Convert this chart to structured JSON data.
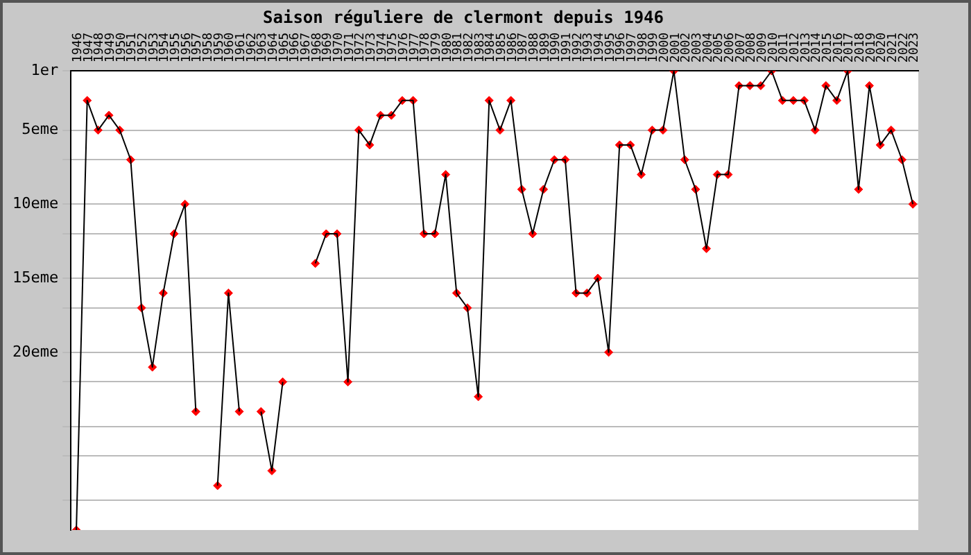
{
  "chart_data": {
    "type": "line",
    "title": "Saison réguliere de clermont depuis 1946",
    "categories": [
      "1946",
      "1947",
      "1948",
      "1949",
      "1950",
      "1951",
      "1952",
      "1953",
      "1954",
      "1955",
      "1956",
      "1957",
      "1958",
      "1959",
      "1960",
      "1961",
      "1962",
      "1963",
      "1964",
      "1965",
      "1966",
      "1967",
      "1968",
      "1969",
      "1970",
      "1971",
      "1972",
      "1973",
      "1974",
      "1975",
      "1976",
      "1977",
      "1978",
      "1979",
      "1980",
      "1981",
      "1982",
      "1983",
      "1984",
      "1985",
      "1986",
      "1987",
      "1988",
      "1989",
      "1990",
      "1991",
      "1992",
      "1993",
      "1994",
      "1995",
      "1996",
      "1997",
      "1998",
      "1999",
      "2000",
      "2001",
      "2002",
      "2003",
      "2004",
      "2005",
      "2006",
      "2007",
      "2008",
      "2009",
      "2010",
      "2011",
      "2012",
      "2013",
      "2014",
      "2015",
      "2016",
      "2017",
      "2018",
      "2019",
      "2020",
      "2021",
      "2022",
      "2023"
    ],
    "series": [
      {
        "color": "#000000",
        "marker": "none",
        "values": [
          32,
          3,
          5,
          4,
          5,
          7,
          17,
          21,
          16,
          12,
          10,
          24,
          null,
          29,
          16,
          24,
          null,
          24,
          28,
          22,
          null,
          null,
          14,
          12,
          12,
          22,
          5,
          6,
          4,
          4,
          3,
          3,
          12,
          12,
          8,
          16,
          17,
          23,
          3,
          5,
          3,
          9,
          12,
          9,
          7,
          7,
          16,
          16,
          15,
          20,
          6,
          6,
          8,
          5,
          5,
          1,
          7,
          9,
          13,
          8,
          8,
          2,
          2,
          2,
          1,
          3,
          3,
          3,
          5,
          2,
          3,
          1,
          9,
          2,
          6,
          5,
          7,
          10
        ]
      },
      {
        "type": "scatter",
        "color": "#ff0000",
        "values": [
          32,
          3,
          5,
          4,
          5,
          7,
          17,
          21,
          16,
          12,
          10,
          24,
          null,
          29,
          16,
          24,
          null,
          24,
          28,
          22,
          null,
          null,
          14,
          12,
          12,
          22,
          5,
          6,
          4,
          4,
          3,
          3,
          12,
          12,
          8,
          16,
          17,
          23,
          3,
          5,
          3,
          9,
          12,
          9,
          7,
          7,
          16,
          16,
          15,
          20,
          6,
          6,
          8,
          5,
          5,
          1,
          7,
          9,
          13,
          8,
          8,
          2,
          2,
          2,
          1,
          3,
          3,
          3,
          5,
          2,
          3,
          1,
          9,
          2,
          6,
          5,
          7,
          10
        ]
      }
    ],
    "ylim": [
      32,
      1
    ],
    "yticks": [
      {
        "value": 1,
        "label": "1er"
      },
      {
        "value": 5,
        "label": "5eme"
      },
      {
        "value": 7,
        "label": null
      },
      {
        "value": 10,
        "label": "10eme"
      },
      {
        "value": 12,
        "label": null
      },
      {
        "value": 15,
        "label": "15eme"
      },
      {
        "value": 17,
        "label": null
      },
      {
        "value": 20,
        "label": "20eme"
      },
      {
        "value": 22,
        "label": null
      },
      {
        "value": 25,
        "label": null
      },
      {
        "value": 27,
        "label": null
      },
      {
        "value": 30,
        "label": null
      }
    ],
    "grid": "y",
    "legend": false,
    "marker": "diamond",
    "line_style": "solid"
  }
}
